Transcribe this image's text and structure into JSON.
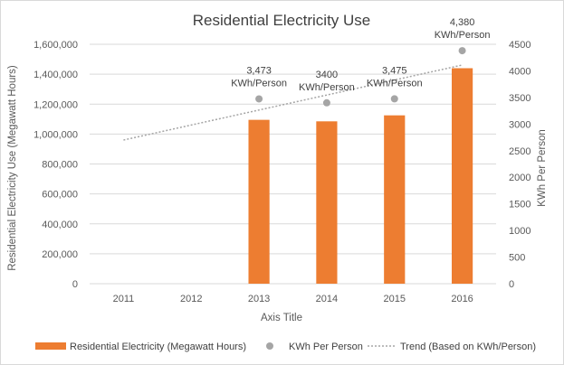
{
  "chart_data": {
    "type": "bar+scatter",
    "title": "Residential Electricity Use",
    "categories": [
      "2011",
      "2012",
      "2013",
      "2014",
      "2015",
      "2016"
    ],
    "xlabel": "Axis Title",
    "ylabel_left": "Residential Electricity Use (Megawatt Hours)",
    "ylabel_right": "KWh Per Person",
    "ylim_left": [
      0,
      1600000
    ],
    "yticks_left": [
      "0",
      "200,000",
      "400,000",
      "600,000",
      "800,000",
      "1,000,000",
      "1,200,000",
      "1,400,000",
      "1,600,000"
    ],
    "ylim_right": [
      0,
      4500
    ],
    "yticks_right": [
      "0",
      "500",
      "1000",
      "1500",
      "2000",
      "2500",
      "3000",
      "3500",
      "4000",
      "4500"
    ],
    "grid": true,
    "legend_position": "bottom",
    "series": [
      {
        "name": "Residential Electricity (Megawatt Hours)",
        "kind": "bar",
        "axis": "left",
        "color": "#ED7D31",
        "values": [
          null,
          null,
          1095000,
          1085000,
          1125000,
          1440000
        ]
      },
      {
        "name": "KWh Per Person",
        "kind": "scatter",
        "axis": "right",
        "color": "#A5A5A5",
        "values": [
          null,
          null,
          3473,
          3400,
          3475,
          4380
        ],
        "labels": [
          null,
          null,
          [
            "3,473",
            "KWh/Person"
          ],
          [
            "3400",
            "KWh/Person"
          ],
          [
            "3,475",
            "KWh/Person"
          ],
          [
            "4,380",
            "KWh/Person"
          ]
        ]
      },
      {
        "name": "Trend (Based on KWh/Person)",
        "kind": "trendline",
        "axis": "right",
        "color": "#A5A5A5",
        "x_start": "2011",
        "x_end": "2016",
        "y_start": 2700,
        "y_end": 4110
      }
    ]
  }
}
